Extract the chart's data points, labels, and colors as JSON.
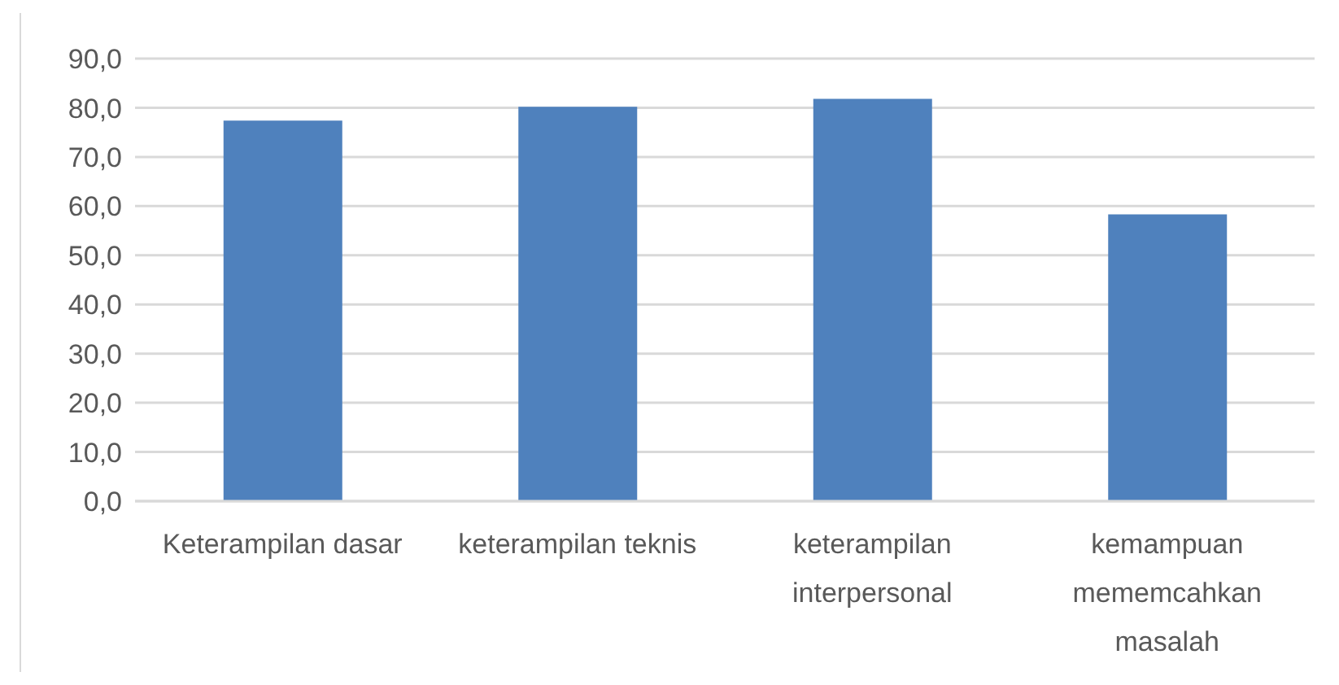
{
  "chart_data": {
    "type": "bar",
    "categories": [
      "Keterampilan dasar",
      "keterampilan teknis",
      "keterampilan interpersonal",
      "kemampuan mememcahkan masalah"
    ],
    "values": [
      77.4,
      80.2,
      81.8,
      58.3
    ],
    "color": "#4f81bd",
    "ylim": [
      0,
      90
    ],
    "yticks": [
      {
        "value": 0,
        "label": "0,0"
      },
      {
        "value": 10,
        "label": "10,0"
      },
      {
        "value": 20,
        "label": "20,0"
      },
      {
        "value": 30,
        "label": "30,0"
      },
      {
        "value": 40,
        "label": "40,0"
      },
      {
        "value": 50,
        "label": "50,0"
      },
      {
        "value": 60,
        "label": "60,0"
      },
      {
        "value": 70,
        "label": "70,0"
      },
      {
        "value": 80,
        "label": "80,0"
      },
      {
        "value": 90,
        "label": "90,0"
      }
    ],
    "grid": "y"
  }
}
